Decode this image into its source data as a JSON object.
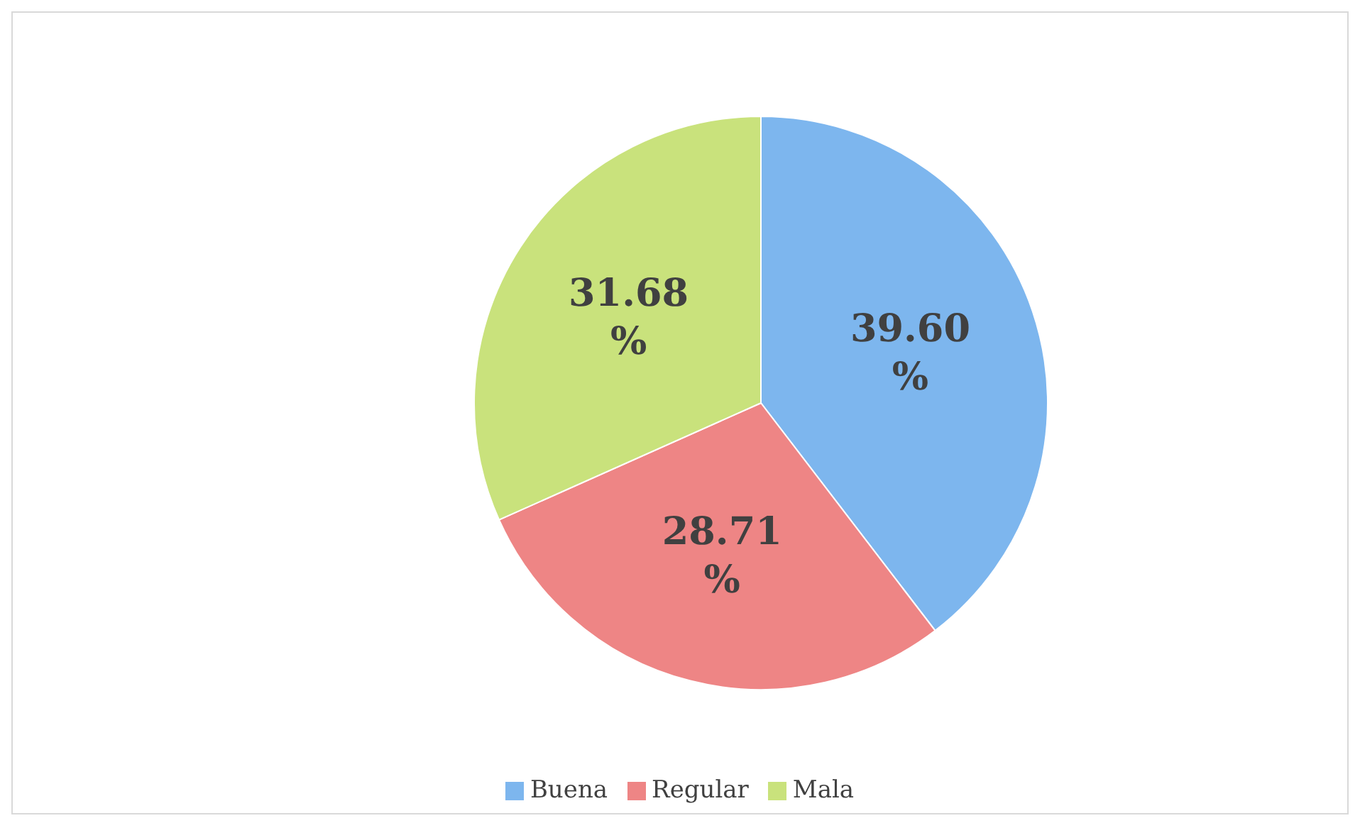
{
  "chart_data": {
    "type": "pie",
    "categories": [
      "Buena",
      "Regular",
      "Mala"
    ],
    "values": [
      39.6,
      28.71,
      31.68
    ],
    "colors": [
      "#7db6ee",
      "#ee8585",
      "#c9e27c"
    ],
    "value_labels": [
      "39.60 %",
      "28.71 %",
      "31.68 %"
    ],
    "legend": "bottom"
  }
}
